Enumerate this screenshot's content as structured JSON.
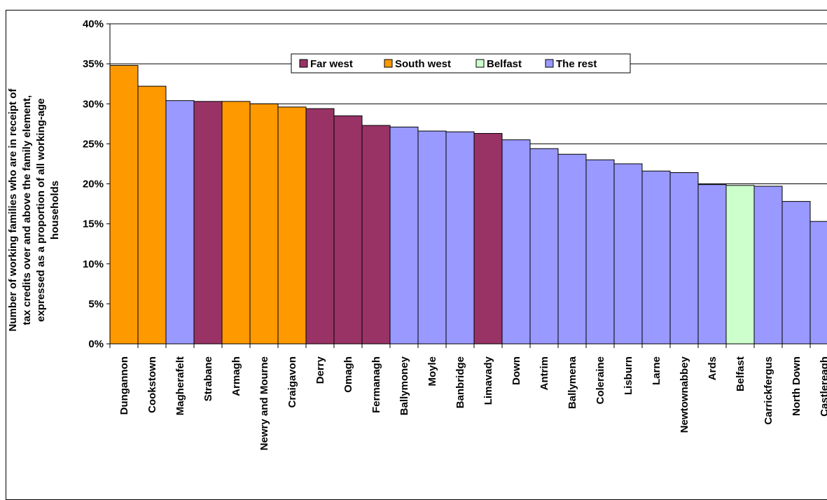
{
  "chart_data": {
    "type": "bar",
    "ylabel_lines": [
      "Number of working families who are in receipt of",
      "tax credits over and above the family element,",
      "expressed as a proportion of all working-age",
      "households"
    ],
    "ylim": [
      0,
      40
    ],
    "yticks": [
      "0%",
      "5%",
      "10%",
      "15%",
      "20%",
      "25%",
      "30%",
      "35%",
      "40%"
    ],
    "grid": true,
    "legend_placement": "top",
    "groups": [
      {
        "name": "Far west",
        "color": "#993366"
      },
      {
        "name": "South west",
        "color": "#FF9900"
      },
      {
        "name": "Belfast",
        "color": "#CCFFCC"
      },
      {
        "name": "The rest",
        "color": "#9999FF"
      }
    ],
    "categories": [
      "Dungannon",
      "Cookstown",
      "Magherafelt",
      "Strabane",
      "Armagh",
      "Newry and Mourne",
      "Craigavon",
      "Derry",
      "Omagh",
      "Fermanagh",
      "Ballymoney",
      "Moyle",
      "Banbridge",
      "Limavady",
      "Down",
      "Antrim",
      "Ballymena",
      "Coleraine",
      "Lisburn",
      "Larne",
      "Newtownabbey",
      "Ards",
      "Belfast",
      "Carrickfergus",
      "North Down",
      "Castlereagh"
    ],
    "values": [
      34.8,
      32.2,
      30.4,
      30.3,
      30.3,
      30.0,
      29.6,
      29.4,
      28.5,
      27.3,
      27.1,
      26.6,
      26.5,
      26.3,
      25.5,
      24.4,
      23.7,
      23.0,
      22.5,
      21.6,
      21.4,
      19.9,
      19.8,
      19.7,
      17.8,
      15.3
    ],
    "bar_groups": [
      "South west",
      "South west",
      "The rest",
      "Far west",
      "South west",
      "South west",
      "South west",
      "Far west",
      "Far west",
      "Far west",
      "The rest",
      "The rest",
      "The rest",
      "Far west",
      "The rest",
      "The rest",
      "The rest",
      "The rest",
      "The rest",
      "The rest",
      "The rest",
      "The rest",
      "Belfast",
      "The rest",
      "The rest",
      "The rest"
    ]
  }
}
